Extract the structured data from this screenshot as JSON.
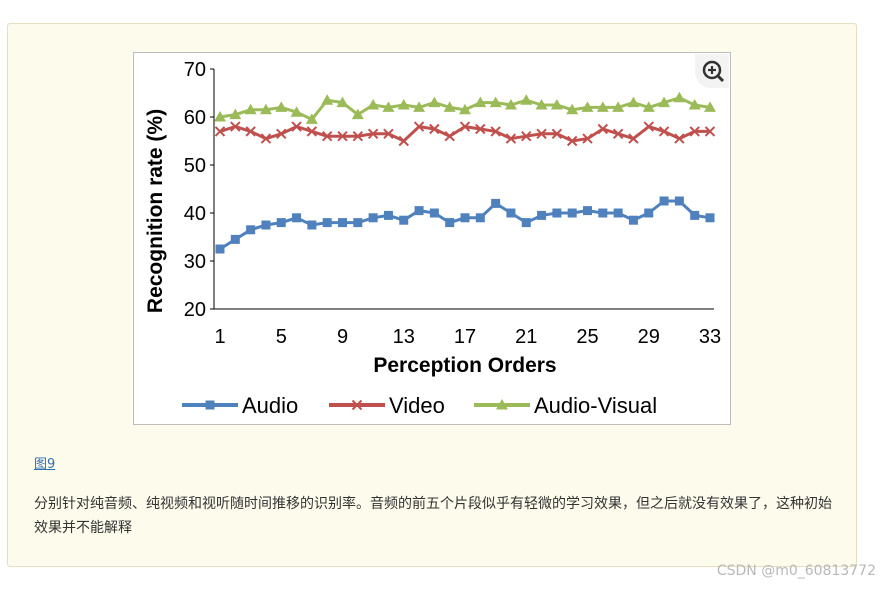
{
  "figure": {
    "link_text": "图9",
    "caption": "分别针对纯音频、纯视频和视听随时间推移的识别率。音频的前五个片段似乎有轻微的学习效果，但之后就没有效果了，这种初始效果并不能解释",
    "zoom_icon": "zoom-in-icon"
  },
  "watermark": "CSDN @m0_60813772",
  "colors": {
    "card_bg": "#fdfbec",
    "audio": "#4f81bd",
    "video": "#c0504d",
    "audio_visual": "#9bbb59"
  },
  "chart_data": {
    "type": "line",
    "title": "",
    "xlabel": "Perception Orders",
    "ylabel": "Recognition rate (%)",
    "ylim": [
      20,
      70
    ],
    "xlim": [
      1,
      33
    ],
    "yticks": [
      20,
      30,
      40,
      50,
      60,
      70
    ],
    "xticks": [
      1,
      5,
      9,
      13,
      17,
      21,
      25,
      29,
      33
    ],
    "grid": false,
    "legend_position": "bottom",
    "x": [
      1,
      2,
      3,
      4,
      5,
      6,
      7,
      8,
      9,
      10,
      11,
      12,
      13,
      14,
      15,
      16,
      17,
      18,
      19,
      20,
      21,
      22,
      23,
      24,
      25,
      26,
      27,
      28,
      29,
      30,
      31,
      32,
      33
    ],
    "series": [
      {
        "name": "Audio",
        "marker": "square",
        "color": "#4f81bd",
        "values": [
          32.5,
          34.5,
          36.5,
          37.5,
          38,
          39,
          37.5,
          38,
          38,
          38,
          39,
          39.5,
          38.5,
          40.5,
          40,
          38,
          39,
          39,
          42,
          40,
          38,
          39.5,
          40,
          40,
          40.5,
          40,
          40,
          38.5,
          40,
          42.5,
          42.5,
          39.5,
          39
        ]
      },
      {
        "name": "Video",
        "marker": "x",
        "color": "#c0504d",
        "values": [
          57,
          58,
          57,
          55.5,
          56.5,
          58,
          57,
          56,
          56,
          56,
          56.5,
          56.5,
          55,
          58,
          57.5,
          56,
          58,
          57.5,
          57,
          55.5,
          56,
          56.5,
          56.5,
          55,
          55.5,
          57.5,
          56.5,
          55.5,
          58,
          57,
          55.5,
          57,
          57
        ]
      },
      {
        "name": "Audio-Visual",
        "marker": "triangle",
        "color": "#9bbb59",
        "values": [
          60,
          60.5,
          61.5,
          61.5,
          62,
          61,
          59.5,
          63.5,
          63,
          60.5,
          62.5,
          62,
          62.5,
          62,
          63,
          62,
          61.5,
          63,
          63,
          62.5,
          63.5,
          62.5,
          62.5,
          61.5,
          62,
          62,
          62,
          63,
          62,
          63,
          64,
          62.5,
          62
        ]
      }
    ]
  }
}
